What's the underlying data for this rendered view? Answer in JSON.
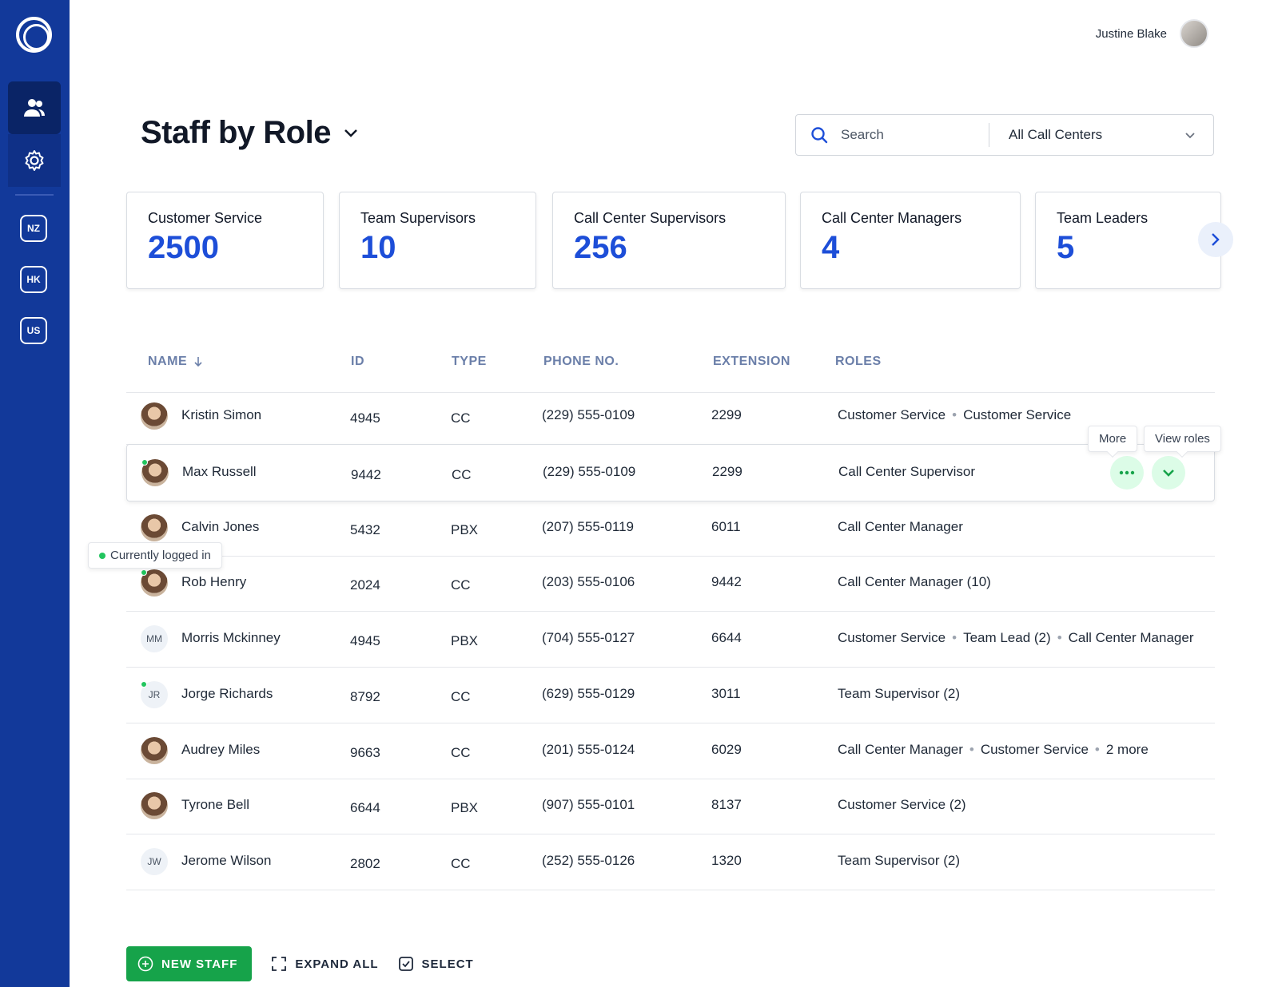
{
  "sidebar": {
    "nav": [
      {
        "name": "people",
        "icon": "people-icon"
      },
      {
        "name": "settings",
        "icon": "gear-icon"
      }
    ],
    "regions": [
      "NZ",
      "HK",
      "US"
    ]
  },
  "user": {
    "name": "Justine Blake"
  },
  "page": {
    "title": "Staff by Role"
  },
  "search": {
    "placeholder": "Search",
    "center_value": "All Call Centers"
  },
  "cards": [
    {
      "label": "Customer Service",
      "value": "2500"
    },
    {
      "label": "Team Supervisors",
      "value": "10"
    },
    {
      "label": "Call Center Supervisors",
      "value": "256"
    },
    {
      "label": "Call Center Managers",
      "value": "4"
    },
    {
      "label": "Team Leaders",
      "value": "5"
    }
  ],
  "table": {
    "headers": {
      "name": "NAME",
      "id": "ID",
      "type": "TYPE",
      "phone": "PHONE NO.",
      "extension": "EXTENSION",
      "roles": "ROLES"
    },
    "rows": [
      {
        "name": "Kristin Simon",
        "id": "4945",
        "type": "CC",
        "phone": "(229) 555-0109",
        "extension": "2299",
        "roles": [
          "Customer Service",
          "Customer Service"
        ],
        "avatar": "",
        "online": false
      },
      {
        "name": "Max Russell",
        "id": "9442",
        "type": "CC",
        "phone": "(229) 555-0109",
        "extension": "2299",
        "roles": [
          "Call Center Supervisor"
        ],
        "avatar": "",
        "online": true
      },
      {
        "name": "Calvin Jones",
        "id": "5432",
        "type": "PBX",
        "phone": "(207) 555-0119",
        "extension": "6011",
        "roles": [
          "Call Center Manager"
        ],
        "avatar": "",
        "online": false
      },
      {
        "name": "Rob Henry",
        "id": "2024",
        "type": "CC",
        "phone": "(203) 555-0106",
        "extension": "9442",
        "roles": [
          "Call Center Manager (10)"
        ],
        "avatar": "",
        "online": true
      },
      {
        "name": "Morris Mckinney",
        "id": "4945",
        "type": "PBX",
        "phone": "(704) 555-0127",
        "extension": "6644",
        "roles": [
          "Customer Service",
          "Team Lead (2)",
          "Call Center Manager"
        ],
        "avatar": "MM",
        "online": false
      },
      {
        "name": "Jorge Richards",
        "id": "8792",
        "type": "CC",
        "phone": "(629) 555-0129",
        "extension": "3011",
        "roles": [
          "Team Supervisor (2)"
        ],
        "avatar": "JR",
        "online": true
      },
      {
        "name": "Audrey Miles",
        "id": "9663",
        "type": "CC",
        "phone": "(201) 555-0124",
        "extension": "6029",
        "roles": [
          "Call Center Manager",
          "Customer Service",
          "2 more"
        ],
        "avatar": "",
        "online": false
      },
      {
        "name": "Tyrone Bell",
        "id": "6644",
        "type": "PBX",
        "phone": "(907) 555-0101",
        "extension": "8137",
        "roles": [
          "Customer Service (2)"
        ],
        "avatar": "",
        "online": false
      },
      {
        "name": "Jerome Wilson",
        "id": "2802",
        "type": "CC",
        "phone": "(252) 555-0126",
        "extension": "1320",
        "roles": [
          "Team Supervisor (2)"
        ],
        "avatar": "JW",
        "online": false
      }
    ]
  },
  "tooltips": {
    "more": "More",
    "view_roles": "View roles",
    "logged_in": "Currently logged in"
  },
  "footer": {
    "new_staff": "NEW STAFF",
    "expand_all": "EXPAND ALL",
    "select": "SELECT"
  },
  "colors": {
    "sidebar": "#12399a",
    "accent": "#1d4ed8",
    "success": "#16a34a"
  }
}
